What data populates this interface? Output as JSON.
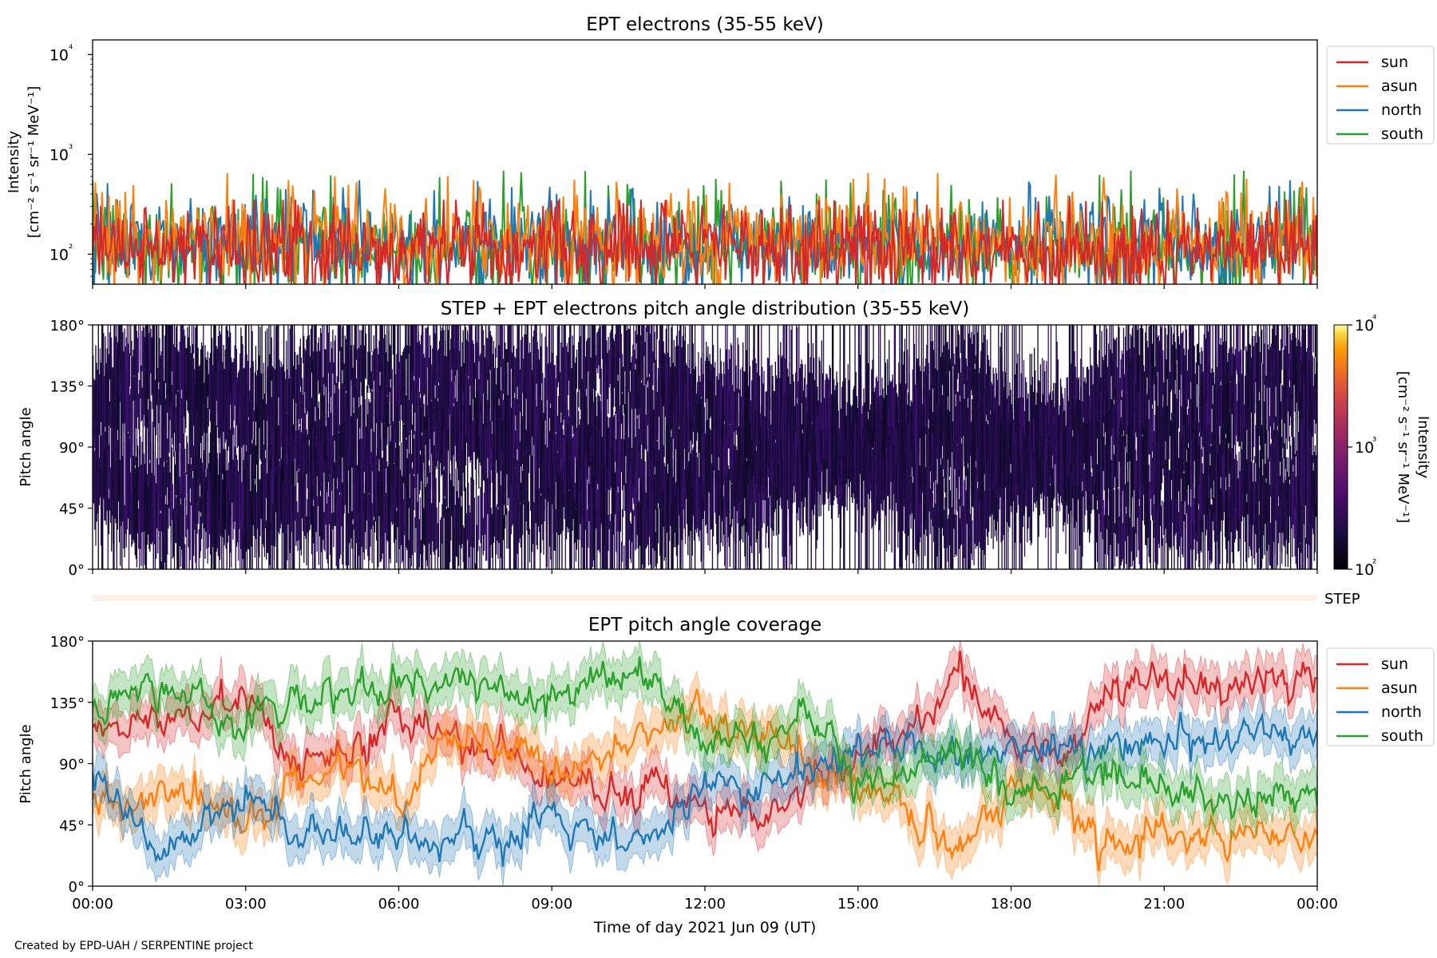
{
  "figure": {
    "credit": "Created by EPD-UAH / SERPENTINE project"
  },
  "colors": {
    "sun": "#d62728",
    "asun": "#ff7f0e",
    "north": "#1f77b4",
    "south": "#2ca02c",
    "step_band": "#fdeee6"
  },
  "chart_data": [
    {
      "id": "panel1",
      "type": "line",
      "title": "EPT electrons (35-55 keV)",
      "ylabel_line1": "Intensity",
      "ylabel_line2": "[cm⁻² s⁻¹ sr⁻¹ MeV⁻¹]",
      "yscale": "log",
      "ylim": [
        50,
        14000
      ],
      "y_ticks": [
        {
          "value": 100,
          "label": "10²"
        },
        {
          "value": 1000,
          "label": "10³"
        },
        {
          "value": 10000,
          "label": "10⁴"
        }
      ],
      "xlim_hours": [
        0,
        24
      ],
      "legend_placement": "outside-right-top",
      "series": [
        {
          "name": "sun",
          "color": "#d62728",
          "typical": 110,
          "spread": 0.55,
          "max": 350
        },
        {
          "name": "asun",
          "color": "#ff7f0e",
          "typical": 140,
          "spread": 0.55,
          "max": 650
        },
        {
          "name": "north",
          "color": "#1f77b4",
          "typical": 130,
          "spread": 0.55,
          "max": 550
        },
        {
          "name": "south",
          "color": "#2ca02c",
          "typical": 120,
          "spread": 0.55,
          "max": 700
        }
      ]
    },
    {
      "id": "panel2",
      "type": "heatmap",
      "title": "STEP + EPT electrons pitch angle distribution (35-55 keV)",
      "ylabel": "Pitch angle",
      "ylim": [
        0,
        180
      ],
      "y_ticks": [
        "0°",
        "45°",
        "90°",
        "135°",
        "180°"
      ],
      "xlim_hours": [
        0,
        24
      ],
      "colormap": "inferno",
      "colorbar": {
        "label_line1": "Intensity",
        "label_line2": "[cm⁻² s⁻¹ sr⁻¹ MeV⁻¹]",
        "scale": "log",
        "range": [
          100,
          10000
        ],
        "ticks": [
          "10²",
          "10³",
          "10⁴"
        ]
      },
      "typical_intensity": [
        100,
        250
      ],
      "step_band_label": "STEP"
    },
    {
      "id": "panel3",
      "type": "line",
      "title": "EPT pitch angle coverage",
      "ylabel": "Pitch angle",
      "ylim": [
        0,
        180
      ],
      "y_ticks": [
        "0°",
        "45°",
        "90°",
        "135°",
        "180°"
      ],
      "xlabel": "Time of day 2021 Jun 09 (UT)",
      "x_tick_labels": [
        "00:00",
        "03:00",
        "06:00",
        "09:00",
        "12:00",
        "15:00",
        "18:00",
        "21:00",
        "00:00"
      ],
      "xlim_hours": [
        0,
        24
      ],
      "legend_placement": "outside-right-top",
      "series": [
        {
          "name": "sun",
          "color": "#d62728",
          "x": [
            0,
            1,
            2,
            3,
            4,
            5,
            6,
            7,
            8,
            9,
            10,
            11,
            12,
            13,
            14,
            15,
            16,
            17,
            18,
            19,
            20,
            21,
            22,
            23,
            24
          ],
          "y": [
            115,
            120,
            125,
            130,
            95,
            100,
            120,
            110,
            90,
            80,
            75,
            70,
            55,
            50,
            75,
            100,
            115,
            155,
            105,
            95,
            145,
            150,
            140,
            150,
            150
          ]
        },
        {
          "name": "asun",
          "color": "#ff7f0e",
          "x": [
            0,
            1,
            2,
            3,
            4,
            5,
            6,
            7,
            8,
            9,
            10,
            11,
            12,
            13,
            14,
            15,
            16,
            17,
            18,
            19,
            20,
            21,
            22,
            23,
            24
          ],
          "y": [
            65,
            60,
            70,
            40,
            80,
            85,
            60,
            110,
            105,
            90,
            95,
            115,
            125,
            110,
            90,
            75,
            55,
            30,
            70,
            70,
            30,
            40,
            40,
            45,
            30
          ]
        },
        {
          "name": "north",
          "color": "#1f77b4",
          "x": [
            0,
            1,
            2,
            3,
            4,
            5,
            6,
            7,
            8,
            9,
            10,
            11,
            12,
            13,
            14,
            15,
            16,
            17,
            18,
            19,
            20,
            21,
            22,
            23,
            24
          ],
          "y": [
            80,
            35,
            40,
            60,
            40,
            35,
            40,
            30,
            35,
            50,
            40,
            35,
            70,
            75,
            85,
            100,
            105,
            95,
            100,
            95,
            110,
            105,
            110,
            115,
            120
          ]
        },
        {
          "name": "south",
          "color": "#2ca02c",
          "x": [
            0,
            1,
            2,
            3,
            4,
            5,
            6,
            7,
            8,
            9,
            10,
            11,
            12,
            13,
            14,
            15,
            16,
            17,
            18,
            19,
            20,
            21,
            22,
            23,
            24
          ],
          "y": [
            125,
            155,
            140,
            115,
            140,
            145,
            150,
            150,
            145,
            140,
            150,
            160,
            100,
            110,
            130,
            80,
            75,
            100,
            70,
            85,
            80,
            75,
            65,
            60,
            65
          ]
        }
      ]
    }
  ]
}
